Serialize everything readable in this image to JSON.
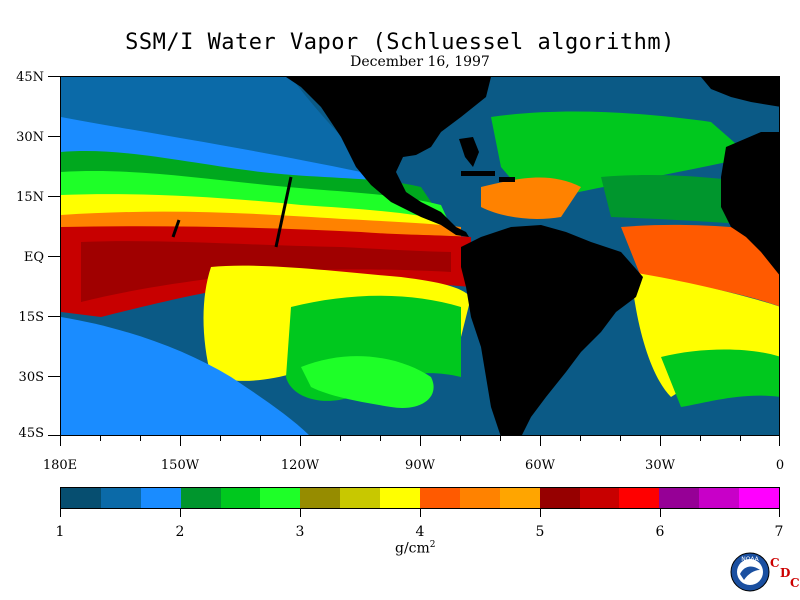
{
  "title": "SSM/I Water Vapor (Schluessel algorithm)",
  "subtitle": "December 16, 1997",
  "map": {
    "lat_labels": [
      "45N",
      "30N",
      "15N",
      "EQ",
      "15S",
      "30S",
      "45S"
    ],
    "lon_labels": [
      "180E",
      "150W",
      "120W",
      "90W",
      "60W",
      "30W",
      "0"
    ]
  },
  "colorbar": {
    "colors": [
      "#064e70",
      "#0b6aa8",
      "#1a8cff",
      "#00962d",
      "#00c81e",
      "#1eff28",
      "#968c00",
      "#c8c800",
      "#ffff00",
      "#ff5a00",
      "#ff8200",
      "#ffa500",
      "#960000",
      "#c80000",
      "#ff0000",
      "#960096",
      "#c800c8",
      "#ff00ff"
    ],
    "labels": [
      "1",
      "2",
      "3",
      "4",
      "5",
      "6",
      "7"
    ],
    "units": "g/cm",
    "units_sup": "2"
  },
  "logo": {
    "noaa_text": "NOAA",
    "cdc_letters": [
      "C",
      "D",
      "C"
    ]
  },
  "palette": {
    "land": "#000000",
    "ocean_dark": "#0b5480"
  }
}
